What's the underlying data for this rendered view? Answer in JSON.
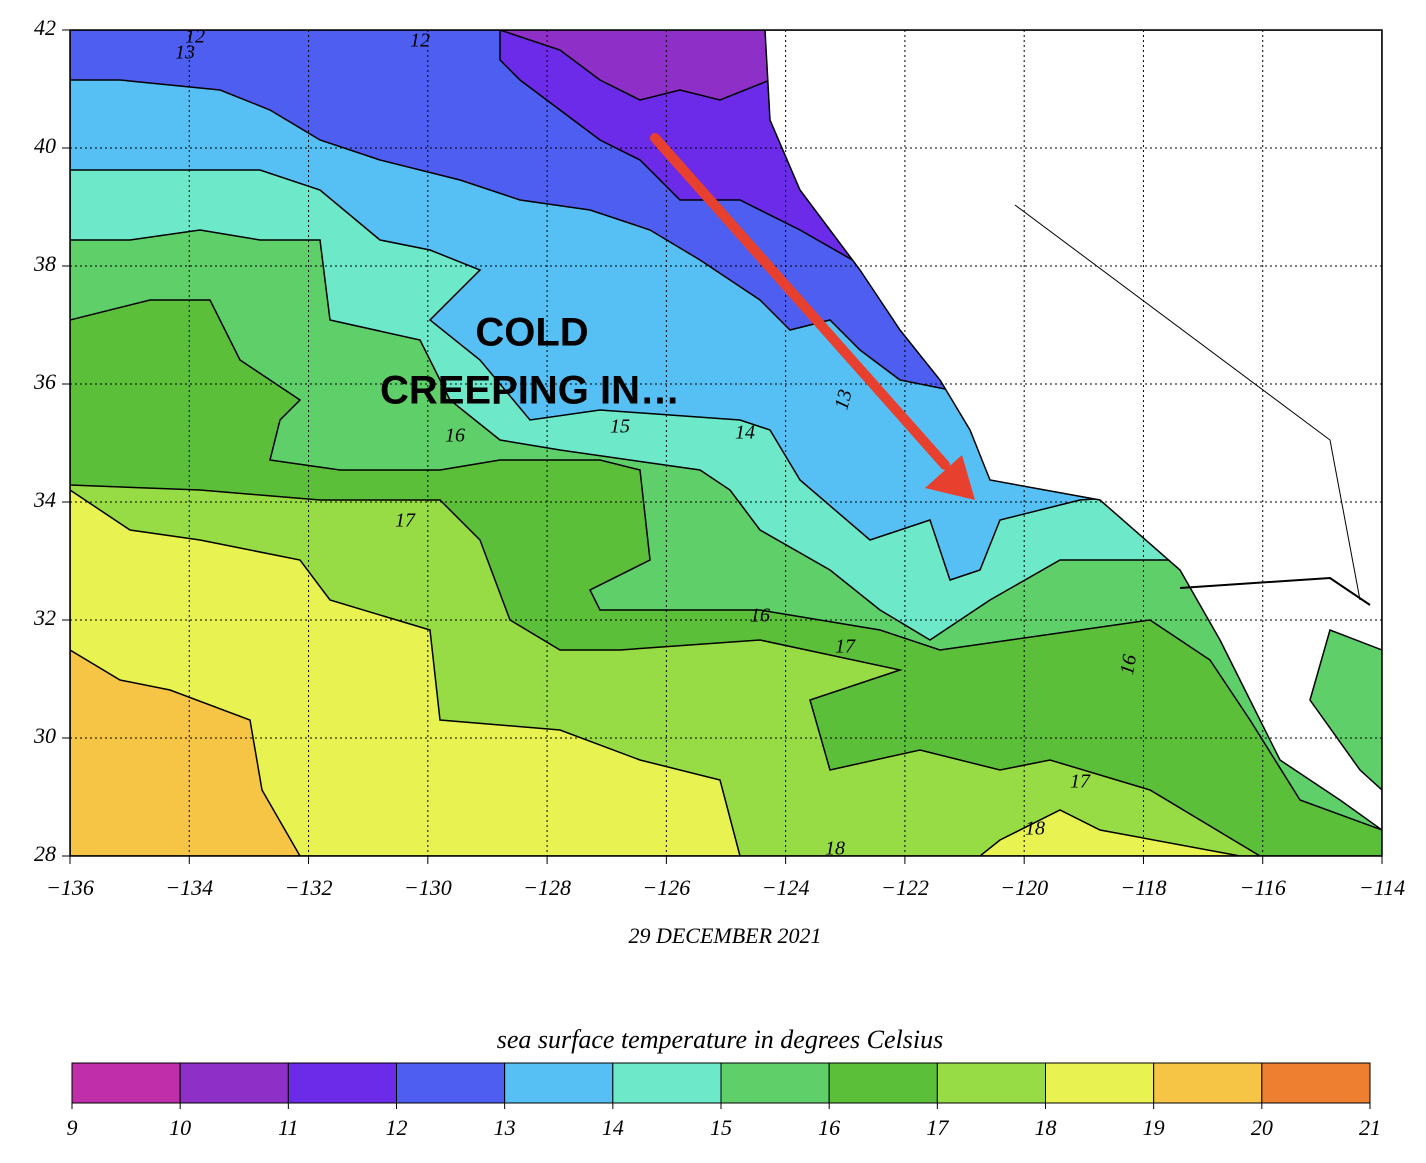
{
  "map": {
    "annotation": [
      "COLD",
      "CREEPING IN…"
    ],
    "date": "29 DECEMBER 2021",
    "xticks": [
      {
        "value": -136,
        "label": "−136"
      },
      {
        "value": -134,
        "label": "−134"
      },
      {
        "value": -132,
        "label": "−132"
      },
      {
        "value": -130,
        "label": "−130"
      },
      {
        "value": -128,
        "label": "−128"
      },
      {
        "value": -126,
        "label": "−126"
      },
      {
        "value": -124,
        "label": "−124"
      },
      {
        "value": -122,
        "label": "−122"
      },
      {
        "value": -120,
        "label": "−120"
      },
      {
        "value": -118,
        "label": "−118"
      },
      {
        "value": -116,
        "label": "−116"
      },
      {
        "value": -114,
        "label": "−114"
      }
    ],
    "yticks": [
      28,
      30,
      32,
      34,
      36,
      38,
      40,
      42
    ],
    "contour_labels": [
      "12",
      "13",
      "12",
      "16",
      "15",
      "14",
      "13",
      "17",
      "16",
      "17",
      "16",
      "17",
      "18",
      "18"
    ],
    "colorbar": {
      "title": "sea surface temperature in degrees Celsius",
      "ticks": [
        9,
        10,
        11,
        12,
        13,
        14,
        15,
        16,
        17,
        18,
        19,
        20,
        21
      ],
      "colors": [
        "#c02fa9",
        "#8e2fc8",
        "#6b2be8",
        "#4e5ef0",
        "#56c0f5",
        "#6de8c8",
        "#5fcf6a",
        "#5cbf3a",
        "#98dc45",
        "#e8f250",
        "#f7c545",
        "#ef7f30"
      ]
    }
  }
}
